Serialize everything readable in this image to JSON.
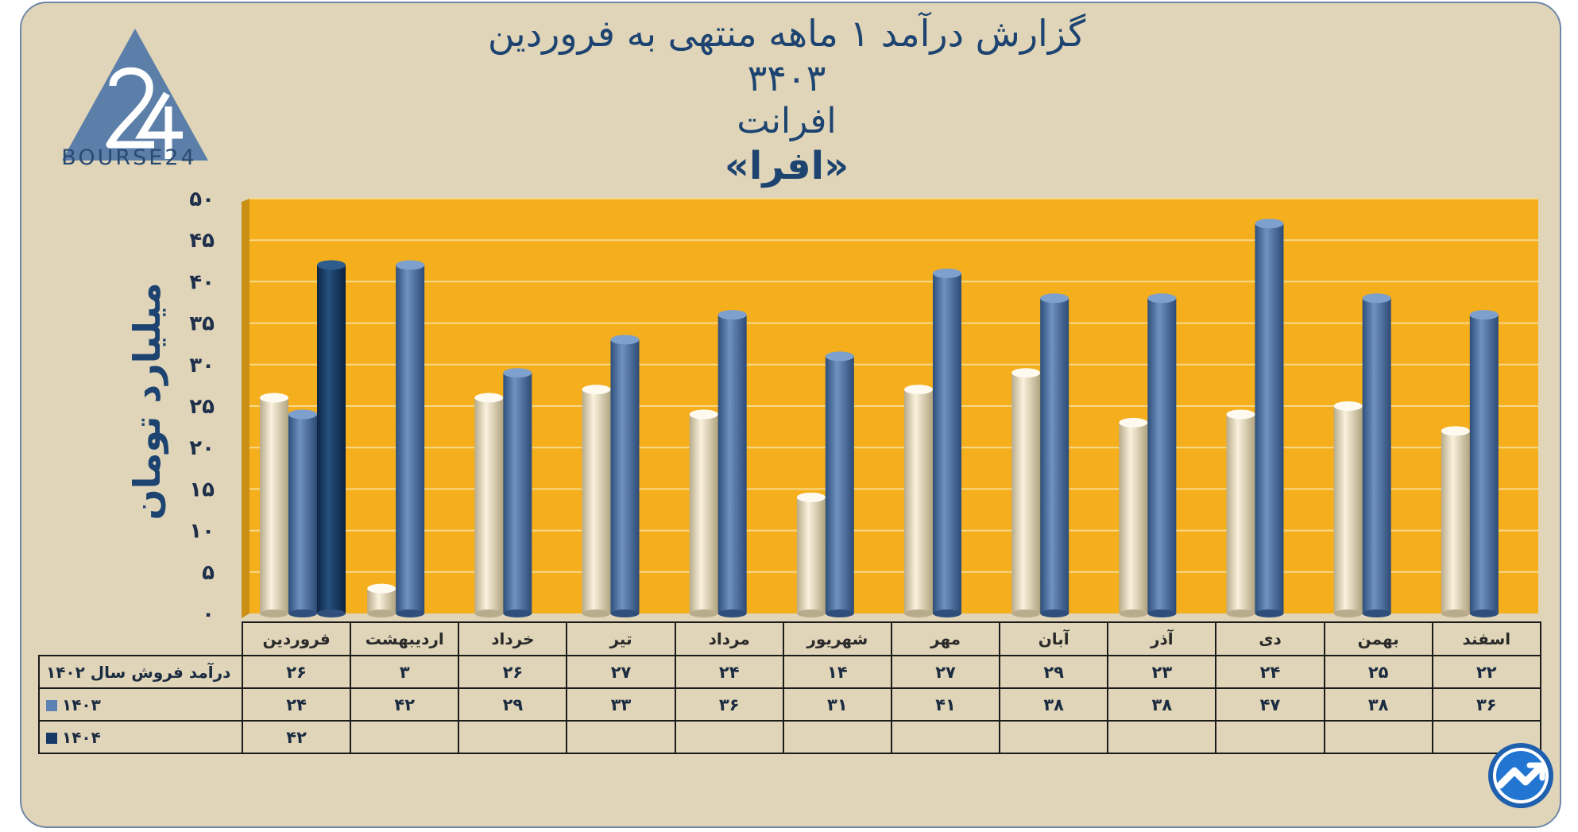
{
  "title": {
    "line1": "گزارش  درآمد ۱ ماهه منتهی به فروردین ۳۴۰۳",
    "line2": "افرانت",
    "line3": "«افرا»"
  },
  "logo": {
    "text": "BOURSE24",
    "icon": "bourse24-logo-icon"
  },
  "corner_badge": {
    "icon": "trend-arrow-icon"
  },
  "colors": {
    "background": "#e0d5b9",
    "plot_area": "#f5ae1c",
    "series_1402": "#eadfc3",
    "series_1403": "#4c73a6",
    "series_1404": "#163a66",
    "title": "#1d4470"
  },
  "chart_data": {
    "type": "bar",
    "ylabel": "میلیارد تومان",
    "ylim": [
      0,
      50
    ],
    "yticks": [
      "۰",
      "۵",
      "۱۰",
      "۱۵",
      "۲۰",
      "۲۵",
      "۳۰",
      "۳۵",
      "۴۰",
      "۴۵",
      "۵۰"
    ],
    "grid": true,
    "categories": [
      "فروردین",
      "اردیبهشت",
      "خرداد",
      "تیر",
      "مرداد",
      "شهریور",
      "مهر",
      "آبان",
      "آذر",
      "دی",
      "بهمن",
      "اسفند"
    ],
    "series": [
      {
        "name": "درآمد فروش سال ۱۴۰۲",
        "values": [
          26,
          3,
          26,
          27,
          24,
          14,
          27,
          29,
          23,
          24,
          25,
          22
        ],
        "labels": [
          "۲۶",
          "۳",
          "۲۶",
          "۲۷",
          "۲۴",
          "۱۴",
          "۲۷",
          "۲۹",
          "۲۳",
          "۲۴",
          "۲۵",
          "۲۲"
        ]
      },
      {
        "name": "۱۴۰۳",
        "values": [
          24,
          42,
          29,
          33,
          36,
          31,
          41,
          38,
          38,
          47,
          38,
          36
        ],
        "labels": [
          "۲۴",
          "۴۲",
          "۲۹",
          "۳۳",
          "۳۶",
          "۳۱",
          "۴۱",
          "۳۸",
          "۳۸",
          "۴۷",
          "۳۸",
          "۳۶"
        ]
      },
      {
        "name": "۱۴۰۴",
        "values": [
          42,
          null,
          null,
          null,
          null,
          null,
          null,
          null,
          null,
          null,
          null,
          null
        ],
        "labels": [
          "۴۲",
          "",
          "",
          "",
          "",
          "",
          "",
          "",
          "",
          "",
          "",
          ""
        ]
      }
    ]
  }
}
